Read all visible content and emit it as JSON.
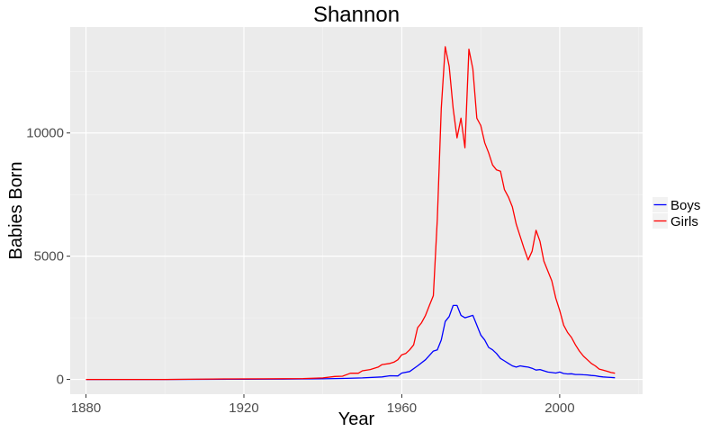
{
  "chart_data": {
    "type": "line",
    "title": "Shannon",
    "xlabel": "Year",
    "ylabel": "Babies Born",
    "xlim": [
      1876,
      2021
    ],
    "ylim": [
      -600,
      14300
    ],
    "xticks": [
      1880,
      1920,
      1960,
      2000
    ],
    "yticks": [
      0,
      5000,
      10000
    ],
    "ytick_labels": [
      "0",
      "5000",
      "10000"
    ],
    "grid": true,
    "legend_position": "right",
    "series": [
      {
        "name": "Boys",
        "color": "#0000ff",
        "points": [
          [
            1880,
            0
          ],
          [
            1900,
            0
          ],
          [
            1920,
            10
          ],
          [
            1930,
            15
          ],
          [
            1940,
            25
          ],
          [
            1945,
            40
          ],
          [
            1950,
            60
          ],
          [
            1955,
            100
          ],
          [
            1957,
            150
          ],
          [
            1959,
            140
          ],
          [
            1960,
            260
          ],
          [
            1962,
            320
          ],
          [
            1964,
            550
          ],
          [
            1966,
            800
          ],
          [
            1968,
            1150
          ],
          [
            1969,
            1200
          ],
          [
            1970,
            1600
          ],
          [
            1971,
            2350
          ],
          [
            1972,
            2550
          ],
          [
            1973,
            3000
          ],
          [
            1974,
            3000
          ],
          [
            1975,
            2600
          ],
          [
            1976,
            2500
          ],
          [
            1977,
            2550
          ],
          [
            1978,
            2600
          ],
          [
            1979,
            2200
          ],
          [
            1980,
            1800
          ],
          [
            1981,
            1600
          ],
          [
            1982,
            1300
          ],
          [
            1983,
            1200
          ],
          [
            1984,
            1050
          ],
          [
            1985,
            850
          ],
          [
            1986,
            750
          ],
          [
            1987,
            650
          ],
          [
            1988,
            550
          ],
          [
            1989,
            500
          ],
          [
            1990,
            550
          ],
          [
            1991,
            520
          ],
          [
            1992,
            500
          ],
          [
            1993,
            450
          ],
          [
            1994,
            380
          ],
          [
            1995,
            400
          ],
          [
            1996,
            350
          ],
          [
            1997,
            300
          ],
          [
            1998,
            280
          ],
          [
            1999,
            260
          ],
          [
            2000,
            300
          ],
          [
            2001,
            240
          ],
          [
            2002,
            220
          ],
          [
            2003,
            230
          ],
          [
            2004,
            200
          ],
          [
            2005,
            200
          ],
          [
            2006,
            190
          ],
          [
            2007,
            180
          ],
          [
            2008,
            160
          ],
          [
            2009,
            150
          ],
          [
            2010,
            120
          ],
          [
            2011,
            100
          ],
          [
            2012,
            90
          ],
          [
            2013,
            80
          ],
          [
            2014,
            70
          ]
        ]
      },
      {
        "name": "Girls",
        "color": "#ff0000",
        "points": [
          [
            1880,
            0
          ],
          [
            1900,
            0
          ],
          [
            1915,
            20
          ],
          [
            1925,
            25
          ],
          [
            1935,
            35
          ],
          [
            1940,
            60
          ],
          [
            1943,
            120
          ],
          [
            1945,
            130
          ],
          [
            1947,
            250
          ],
          [
            1949,
            250
          ],
          [
            1950,
            350
          ],
          [
            1952,
            400
          ],
          [
            1954,
            500
          ],
          [
            1955,
            600
          ],
          [
            1957,
            650
          ],
          [
            1958,
            700
          ],
          [
            1959,
            800
          ],
          [
            1960,
            1000
          ],
          [
            1961,
            1050
          ],
          [
            1962,
            1200
          ],
          [
            1963,
            1400
          ],
          [
            1964,
            2100
          ],
          [
            1965,
            2300
          ],
          [
            1966,
            2600
          ],
          [
            1967,
            3000
          ],
          [
            1968,
            3400
          ],
          [
            1969,
            6500
          ],
          [
            1970,
            11000
          ],
          [
            1971,
            13500
          ],
          [
            1972,
            12700
          ],
          [
            1973,
            11000
          ],
          [
            1974,
            9800
          ],
          [
            1975,
            10600
          ],
          [
            1976,
            9400
          ],
          [
            1977,
            13400
          ],
          [
            1978,
            12600
          ],
          [
            1979,
            10600
          ],
          [
            1980,
            10300
          ],
          [
            1981,
            9600
          ],
          [
            1982,
            9200
          ],
          [
            1983,
            8700
          ],
          [
            1984,
            8500
          ],
          [
            1985,
            8450
          ],
          [
            1986,
            7700
          ],
          [
            1987,
            7400
          ],
          [
            1988,
            7000
          ],
          [
            1989,
            6300
          ],
          [
            1990,
            5800
          ],
          [
            1991,
            5300
          ],
          [
            1992,
            4850
          ],
          [
            1993,
            5200
          ],
          [
            1994,
            6050
          ],
          [
            1995,
            5600
          ],
          [
            1996,
            4800
          ],
          [
            1997,
            4400
          ],
          [
            1998,
            4000
          ],
          [
            1999,
            3300
          ],
          [
            2000,
            2800
          ],
          [
            2001,
            2200
          ],
          [
            2002,
            1900
          ],
          [
            2003,
            1700
          ],
          [
            2004,
            1400
          ],
          [
            2005,
            1150
          ],
          [
            2006,
            950
          ],
          [
            2007,
            800
          ],
          [
            2008,
            650
          ],
          [
            2009,
            550
          ],
          [
            2010,
            420
          ],
          [
            2011,
            380
          ],
          [
            2012,
            330
          ],
          [
            2013,
            280
          ],
          [
            2014,
            250
          ]
        ]
      }
    ]
  }
}
